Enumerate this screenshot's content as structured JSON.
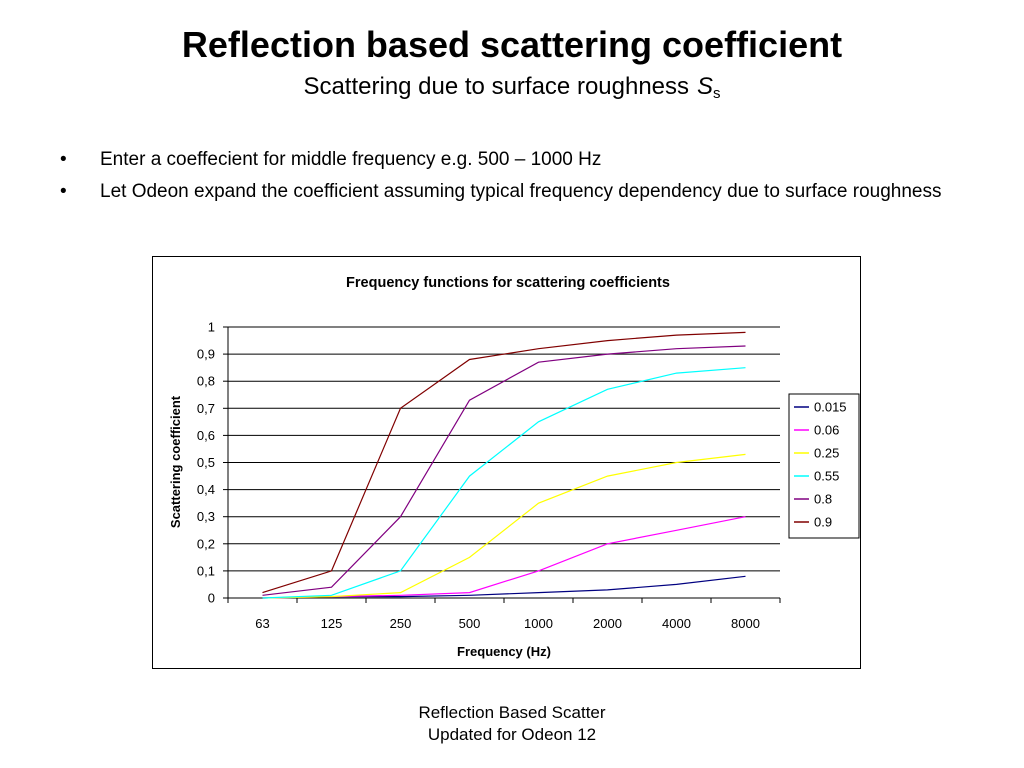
{
  "slide": {
    "title": "Reflection based scattering coefficient",
    "subtitle": "Scattering due to surface roughness",
    "subtitle_symbol": "S",
    "subtitle_symbol_sub": "s",
    "bullets": [
      "Enter a coeffecient for middle frequency e.g. 500 – 1000 Hz",
      "Let Odeon expand the coefficient assuming typical frequency dependency due to surface roughness"
    ],
    "footer_line1": "Reflection Based Scatter",
    "footer_line2": "Updated for Odeon 12"
  },
  "chart_data": {
    "type": "line",
    "title": "Frequency functions for scattering coefficients",
    "xlabel": "Frequency (Hz)",
    "ylabel": "Scattering coefficient",
    "categories": [
      "63",
      "125",
      "250",
      "500",
      "1000",
      "2000",
      "4000",
      "8000"
    ],
    "ylim": [
      0,
      1
    ],
    "yticks": [
      "0",
      "0,1",
      "0,2",
      "0,3",
      "0,4",
      "0,5",
      "0,6",
      "0,7",
      "0,8",
      "0,9",
      "1"
    ],
    "grid": true,
    "legend": "right",
    "series": [
      {
        "name": "0.015",
        "color": "#000080",
        "values": [
          0.0,
          0.005,
          0.005,
          0.01,
          0.02,
          0.03,
          0.05,
          0.08
        ]
      },
      {
        "name": "0.06",
        "color": "#ff00ff",
        "values": [
          0.0,
          0.005,
          0.01,
          0.02,
          0.1,
          0.2,
          0.25,
          0.3
        ]
      },
      {
        "name": "0.25",
        "color": "#ffff00",
        "values": [
          0.0,
          0.005,
          0.02,
          0.15,
          0.35,
          0.45,
          0.5,
          0.53
        ]
      },
      {
        "name": "0.55",
        "color": "#00ffff",
        "values": [
          0.0,
          0.01,
          0.1,
          0.45,
          0.65,
          0.77,
          0.83,
          0.85
        ]
      },
      {
        "name": "0.8",
        "color": "#800080",
        "values": [
          0.01,
          0.04,
          0.3,
          0.73,
          0.87,
          0.9,
          0.92,
          0.93
        ]
      },
      {
        "name": "0.9",
        "color": "#800000",
        "values": [
          0.02,
          0.1,
          0.7,
          0.88,
          0.92,
          0.95,
          0.97,
          0.98
        ]
      }
    ]
  }
}
